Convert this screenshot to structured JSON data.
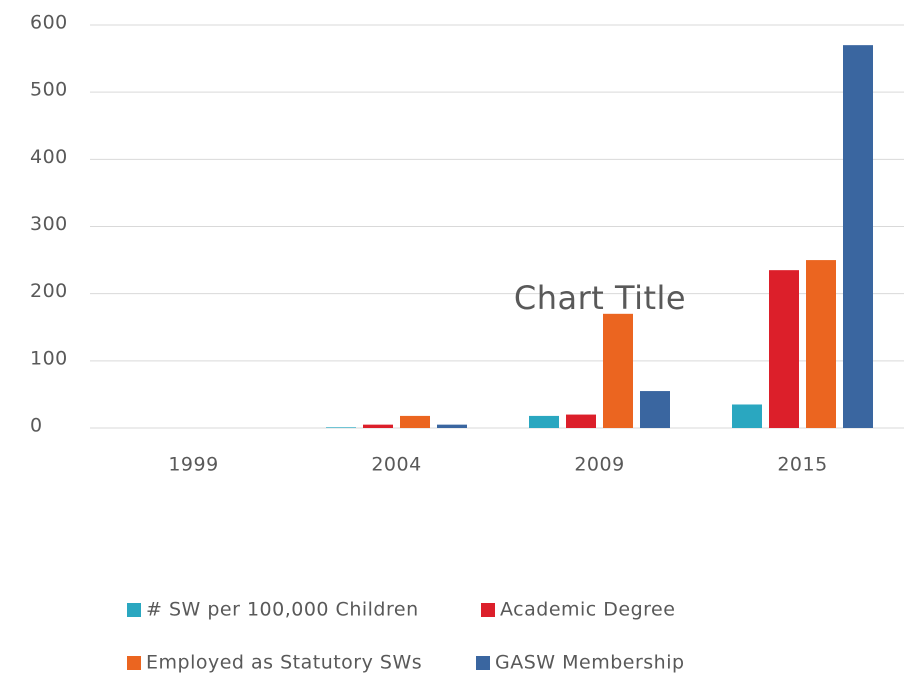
{
  "chart_data": {
    "type": "bar",
    "title": "Chart Title",
    "categories": [
      "1999",
      "2004",
      "2009",
      "2015"
    ],
    "series": [
      {
        "name": "# SW per 100,000 Children",
        "color": "#2aa7c0",
        "values": [
          0,
          1,
          18,
          35
        ]
      },
      {
        "name": "Academic Degree",
        "color": "#dc1f2a",
        "values": [
          0,
          5,
          20,
          235
        ]
      },
      {
        "name": "Employed as Statutory SWs",
        "color": "#eb6520",
        "values": [
          0,
          18,
          170,
          250
        ]
      },
      {
        "name": "GASW Membership",
        "color": "#3a66a0",
        "values": [
          0,
          5,
          55,
          570
        ]
      }
    ],
    "ylim": [
      0,
      600
    ],
    "yticks": [
      0,
      100,
      200,
      300,
      400,
      500,
      600
    ],
    "grid": true,
    "legend": "bottom"
  }
}
